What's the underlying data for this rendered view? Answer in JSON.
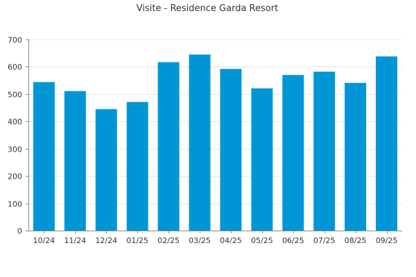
{
  "chart_data": {
    "type": "bar",
    "title": "Visite - Residence Garda Resort",
    "xlabel": "",
    "ylabel": "",
    "categories": [
      "10/24",
      "11/24",
      "12/24",
      "01/25",
      "02/25",
      "03/25",
      "04/25",
      "05/25",
      "06/25",
      "07/25",
      "08/25",
      "09/25"
    ],
    "values": [
      544,
      511,
      445,
      471,
      617,
      645,
      592,
      521,
      570,
      582,
      541,
      638
    ],
    "ylim": [
      0,
      700
    ],
    "yticks": [
      0,
      100,
      200,
      300,
      400,
      500,
      600,
      700
    ],
    "grid": true,
    "legend": "none",
    "bar_color": "#0096d6"
  }
}
